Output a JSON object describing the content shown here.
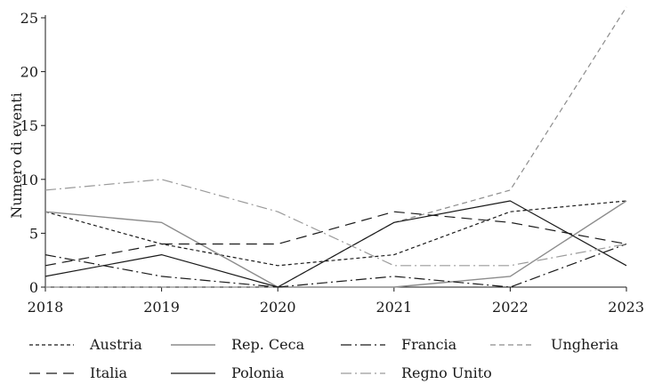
{
  "chart_data": {
    "type": "line",
    "title": "",
    "xlabel": "",
    "ylabel": "Numero di eventi",
    "x": [
      2018,
      2019,
      2020,
      2021,
      2022,
      2023
    ],
    "xlim": [
      2018,
      2023
    ],
    "ylim": [
      0,
      25
    ],
    "yticks": [
      0,
      5,
      10,
      15,
      20,
      25
    ],
    "grid": false,
    "legend_position": "bottom",
    "series": [
      {
        "name": "Austria",
        "values": [
          7,
          4,
          2,
          3,
          7,
          8
        ],
        "color": "#1a1a1a",
        "dash": "4,3",
        "width": 1.2
      },
      {
        "name": "Rep. Ceca",
        "values": [
          7,
          6,
          0,
          0,
          1,
          8
        ],
        "color": "#8c8c8c",
        "dash": "",
        "width": 1.4
      },
      {
        "name": "Francia",
        "values": [
          3,
          1,
          0,
          1,
          0,
          4
        ],
        "color": "#1a1a1a",
        "dash": "12,4,2,4",
        "width": 1.2
      },
      {
        "name": "Ungheria",
        "values": [
          0,
          0,
          0,
          6,
          9,
          26
        ],
        "color": "#8c8c8c",
        "dash": "6,4",
        "width": 1.2
      },
      {
        "name": "Italia",
        "values": [
          2,
          4,
          4,
          7,
          6,
          4
        ],
        "color": "#1a1a1a",
        "dash": "12,7",
        "width": 1.2
      },
      {
        "name": "Polonia",
        "values": [
          1,
          3,
          0,
          6,
          8,
          2
        ],
        "color": "#1a1a1a",
        "dash": "",
        "width": 1.2
      },
      {
        "name": "Regno Unito",
        "values": [
          9,
          10,
          7,
          2,
          2,
          4
        ],
        "color": "#9a9a9a",
        "dash": "12,4,2,4",
        "width": 1.2
      }
    ]
  }
}
